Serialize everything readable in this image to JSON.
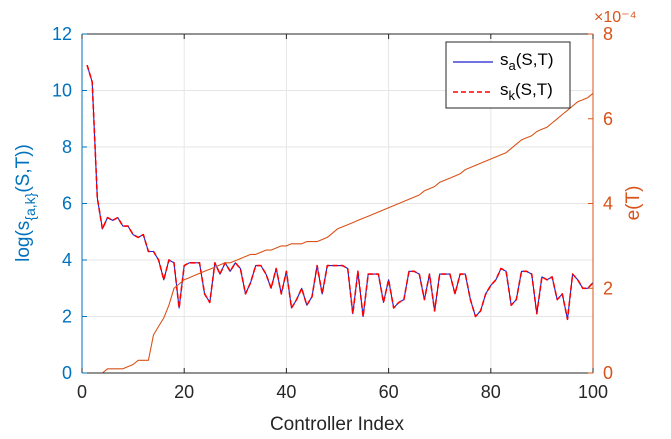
{
  "chart_data": {
    "type": "line",
    "xlabel": "Controller Index",
    "ylabel_left": "log(s{a,k}(S,T))",
    "ylabel_right": "e(T)",
    "xlim": [
      0,
      100
    ],
    "ylim_left": [
      0,
      12
    ],
    "ylim_right": [
      0,
      8
    ],
    "right_axis_exponent": "×10⁻⁴",
    "grid": true,
    "legend_position": "top-right",
    "x_ticks": [
      0,
      20,
      40,
      60,
      80,
      100
    ],
    "y_left_ticks": [
      0,
      2,
      4,
      6,
      8,
      10,
      12
    ],
    "y_right_ticks": [
      0,
      2,
      4,
      6,
      8
    ],
    "x": [
      1,
      2,
      3,
      4,
      5,
      6,
      7,
      8,
      9,
      10,
      11,
      12,
      13,
      14,
      15,
      16,
      17,
      18,
      19,
      20,
      21,
      22,
      23,
      24,
      25,
      26,
      27,
      28,
      29,
      30,
      31,
      32,
      33,
      34,
      35,
      36,
      37,
      38,
      39,
      40,
      41,
      42,
      43,
      44,
      45,
      46,
      47,
      48,
      49,
      50,
      51,
      52,
      53,
      54,
      55,
      56,
      57,
      58,
      59,
      60,
      61,
      62,
      63,
      64,
      65,
      66,
      67,
      68,
      69,
      70,
      71,
      72,
      73,
      74,
      75,
      76,
      77,
      78,
      79,
      80,
      81,
      82,
      83,
      84,
      85,
      86,
      87,
      88,
      89,
      90,
      91,
      92,
      93,
      94,
      95,
      96,
      97,
      98,
      99,
      100
    ],
    "series": [
      {
        "name": "s_a(S,T)",
        "axis": "left",
        "color": "#1f1fcf",
        "style": "solid",
        "values": [
          10.9,
          10.3,
          6.2,
          5.1,
          5.5,
          5.4,
          5.5,
          5.2,
          5.2,
          4.9,
          4.8,
          4.9,
          4.3,
          4.3,
          4.0,
          3.3,
          4.0,
          3.9,
          2.3,
          3.8,
          3.9,
          3.9,
          3.9,
          2.8,
          2.5,
          3.9,
          3.5,
          3.9,
          3.6,
          3.9,
          3.7,
          2.8,
          3.2,
          3.8,
          3.8,
          3.5,
          3.0,
          3.7,
          2.8,
          3.6,
          2.3,
          2.6,
          3.0,
          2.4,
          2.7,
          3.8,
          2.8,
          3.8,
          3.8,
          3.8,
          3.8,
          3.7,
          2.1,
          3.6,
          2.0,
          3.5,
          3.5,
          3.5,
          2.5,
          3.3,
          2.3,
          2.5,
          2.6,
          3.6,
          3.6,
          3.5,
          2.6,
          3.5,
          2.2,
          3.5,
          3.5,
          3.5,
          2.8,
          3.5,
          3.5,
          2.6,
          2.0,
          2.2,
          2.8,
          3.1,
          3.3,
          3.7,
          3.6,
          2.4,
          2.6,
          3.6,
          3.6,
          3.5,
          2.1,
          3.4,
          3.3,
          3.4,
          2.6,
          2.8,
          1.9,
          3.5,
          3.3,
          3.0,
          3.0,
          3.2
        ]
      },
      {
        "name": "s_k(S,T)",
        "axis": "left",
        "color": "#ff0000",
        "style": "dashed",
        "values": [
          10.9,
          10.3,
          6.2,
          5.1,
          5.5,
          5.4,
          5.5,
          5.2,
          5.2,
          4.9,
          4.8,
          4.9,
          4.3,
          4.3,
          4.0,
          3.3,
          4.0,
          3.9,
          2.3,
          3.8,
          3.9,
          3.9,
          3.9,
          2.8,
          2.5,
          3.9,
          3.5,
          3.9,
          3.6,
          3.9,
          3.7,
          2.8,
          3.2,
          3.8,
          3.8,
          3.5,
          3.0,
          3.7,
          2.8,
          3.6,
          2.3,
          2.6,
          3.0,
          2.4,
          2.7,
          3.8,
          2.8,
          3.8,
          3.8,
          3.8,
          3.8,
          3.7,
          2.1,
          3.6,
          2.0,
          3.5,
          3.5,
          3.5,
          2.5,
          3.3,
          2.3,
          2.5,
          2.6,
          3.6,
          3.6,
          3.5,
          2.6,
          3.5,
          2.2,
          3.5,
          3.5,
          3.5,
          2.8,
          3.5,
          3.5,
          2.6,
          2.0,
          2.2,
          2.8,
          3.1,
          3.3,
          3.7,
          3.6,
          2.4,
          2.6,
          3.6,
          3.6,
          3.5,
          2.1,
          3.4,
          3.3,
          3.4,
          2.6,
          2.8,
          1.9,
          3.5,
          3.3,
          3.0,
          3.0,
          3.2
        ]
      },
      {
        "name": "e(T)",
        "axis": "right",
        "color": "#D95319",
        "style": "solid",
        "values": [
          0.0,
          0.0,
          0.0,
          0.0,
          0.1,
          0.1,
          0.1,
          0.1,
          0.15,
          0.2,
          0.3,
          0.3,
          0.3,
          0.9,
          1.1,
          1.3,
          1.6,
          2.0,
          2.1,
          2.2,
          2.25,
          2.3,
          2.35,
          2.4,
          2.45,
          2.5,
          2.55,
          2.6,
          2.6,
          2.65,
          2.7,
          2.75,
          2.8,
          2.8,
          2.85,
          2.9,
          2.9,
          2.95,
          3.0,
          3.0,
          3.05,
          3.05,
          3.05,
          3.1,
          3.1,
          3.1,
          3.15,
          3.2,
          3.3,
          3.4,
          3.45,
          3.5,
          3.55,
          3.6,
          3.65,
          3.7,
          3.75,
          3.8,
          3.85,
          3.9,
          3.95,
          4.0,
          4.05,
          4.1,
          4.15,
          4.2,
          4.3,
          4.35,
          4.4,
          4.5,
          4.55,
          4.6,
          4.65,
          4.7,
          4.8,
          4.85,
          4.9,
          4.95,
          5.0,
          5.05,
          5.1,
          5.15,
          5.2,
          5.3,
          5.4,
          5.5,
          5.55,
          5.6,
          5.7,
          5.75,
          5.8,
          5.9,
          6.0,
          6.1,
          6.2,
          6.3,
          6.4,
          6.45,
          6.5,
          6.6
        ]
      }
    ],
    "legend": [
      {
        "main": "s",
        "sub": "a",
        "rest": "(S,T)"
      },
      {
        "main": "s",
        "sub": "k",
        "rest": "(S,T)"
      }
    ]
  }
}
